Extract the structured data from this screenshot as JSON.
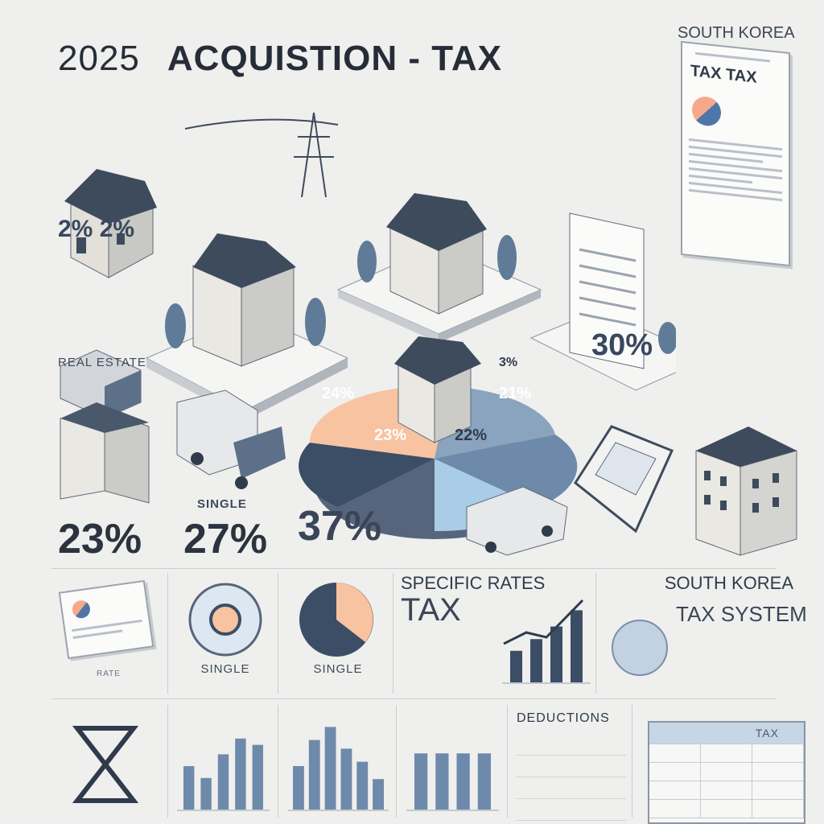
{
  "header": {
    "year": "2025",
    "title": "ACQUISTION - TAX",
    "country": "SOUTH KOREA"
  },
  "scene": {
    "doc_title": "TAX TAX",
    "left_pct": "2% 2%",
    "right_pct": "30%",
    "real_estate_label": "REAL ESTATE",
    "pie_labels": [
      "24%",
      "3%",
      "21%",
      "23%",
      "22%"
    ]
  },
  "stats": {
    "pct_1": "23%",
    "single_label": "SINGLE",
    "pct_2": "27%",
    "pct_3": "37%"
  },
  "panels": {
    "rates_label": "RATE",
    "single_1": "SINGLE",
    "single_2": "SINGLE",
    "specific_rates": "SPECIFIC RATES",
    "tax_big": "TAX",
    "sk_label": "SOUTH KOREA",
    "tax_system": "TAX SYSTEM",
    "deductions": "DEDUCTIONS",
    "table_header": "TAX"
  },
  "charts": {
    "bars_a": [
      0.55,
      0.4,
      0.7,
      0.9,
      0.82
    ],
    "bars_b": [
      0.5,
      0.8,
      0.95,
      0.7,
      0.55,
      0.35
    ],
    "bars_c": [
      0.75,
      0.75,
      0.75,
      0.75
    ],
    "bars_growth": [
      0.35,
      0.48,
      0.62,
      0.8
    ]
  },
  "colors": {
    "navy": "#3c4d66",
    "blue": "#6e8aab",
    "light_blue": "#a9cde6",
    "peach": "#f7c3a1",
    "slate": "#56657b"
  }
}
